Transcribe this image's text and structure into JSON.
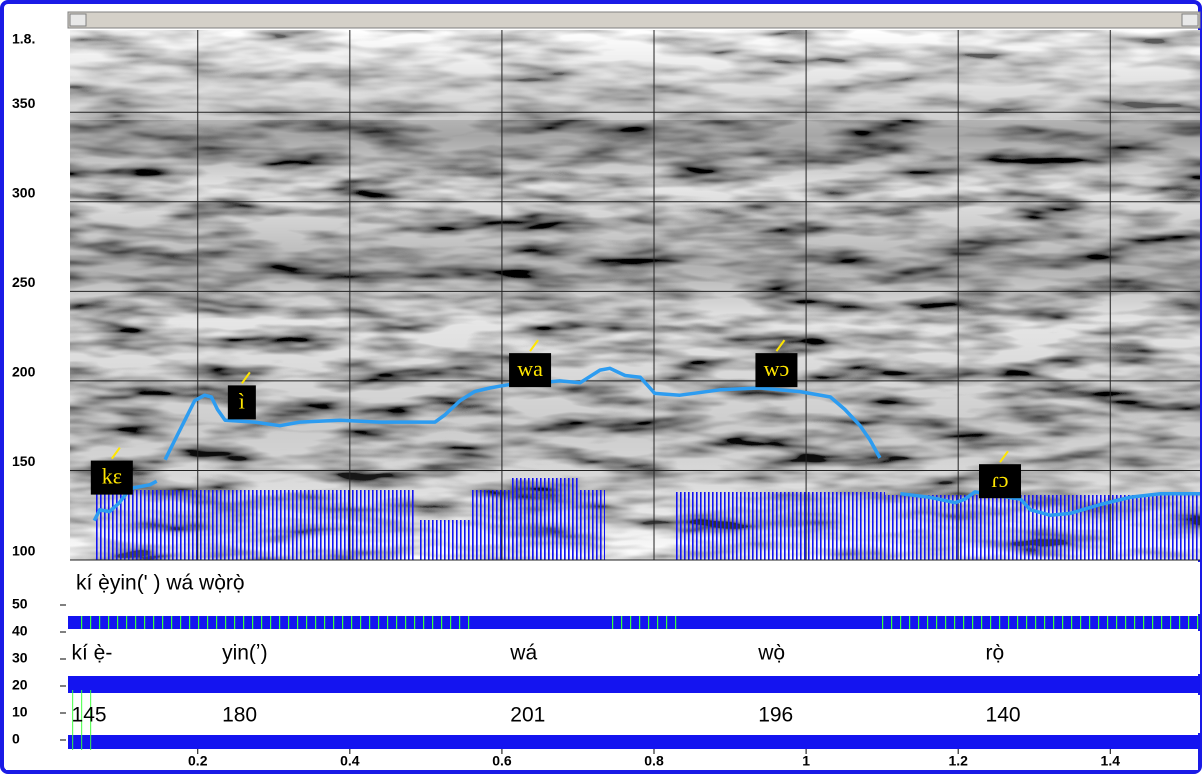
{
  "chart_data": {
    "type": "line",
    "corner_label": "1.8.",
    "transcription": "kí ẹ̀yin(' ) wá wọ̀rọ̀",
    "color": "#2d9cf0",
    "x": [
      0.064,
      0.071,
      0.084,
      0.097,
      0.111,
      0.124,
      0.137,
      0.146,
      0.151,
      0.157,
      0.17,
      0.183,
      0.196,
      0.209,
      0.218,
      0.226,
      0.236,
      0.275,
      0.308,
      0.334,
      0.387,
      0.439,
      0.512,
      0.525,
      0.545,
      0.564,
      0.584,
      0.597,
      0.624,
      0.65,
      0.676,
      0.703,
      0.729,
      0.742,
      0.762,
      0.782,
      0.801,
      0.834,
      0.887,
      0.939,
      0.992,
      1.032,
      1.051,
      1.071,
      1.084,
      1.097,
      1.11,
      1.124,
      1.163,
      1.196,
      1.209,
      1.222,
      1.282,
      1.295,
      1.321,
      1.347,
      1.387,
      1.426,
      1.466,
      1.518
    ],
    "values": [
      122,
      128,
      127,
      132,
      140,
      141,
      142,
      144,
      null,
      156,
      167,
      178,
      189,
      192,
      191,
      184,
      178,
      177,
      175,
      177,
      178,
      177,
      177,
      181,
      189,
      194,
      196,
      197,
      199,
      199,
      200,
      199,
      206,
      207,
      203,
      202,
      193,
      192,
      195,
      196,
      194,
      191,
      184,
      175,
      167,
      157,
      null,
      137,
      135,
      132,
      134,
      138,
      134,
      128,
      125,
      126,
      131,
      135,
      137,
      137
    ],
    "xlim": [
      0.032,
      1.518
    ],
    "xticks": [
      0.2,
      0.4,
      0.6,
      0.8,
      1,
      1.2,
      1.4
    ],
    "ylim": [
      100,
      397
    ],
    "yticks": [
      100,
      150,
      200,
      250,
      300,
      350
    ],
    "y2lim": [
      0,
      50
    ],
    "y2ticks": [
      0,
      10,
      20,
      30,
      40,
      50
    ],
    "grid": true,
    "annotations": [
      {
        "text": "kɛ",
        "x": 0.087,
        "y": 146
      },
      {
        "text": "ì",
        "x": 0.258,
        "y": 188
      },
      {
        "text": "wa",
        "x": 0.637,
        "y": 206
      },
      {
        "text": "wɔ",
        "x": 0.961,
        "y": 206
      },
      {
        "text": "ɾɔ",
        "x": 1.255,
        "y": 144
      }
    ],
    "syllables": [
      {
        "text": "kí ẹ̀-",
        "x": 0.034,
        "pitch": 145
      },
      {
        "text": "yin(ʼ)",
        "x": 0.232,
        "pitch": 180
      },
      {
        "text": "wá",
        "x": 0.611,
        "pitch": 201
      },
      {
        "text": "wọ̀",
        "x": 0.937,
        "pitch": 196
      },
      {
        "text": "rọ̀",
        "x": 1.236,
        "pitch": 140
      }
    ]
  }
}
